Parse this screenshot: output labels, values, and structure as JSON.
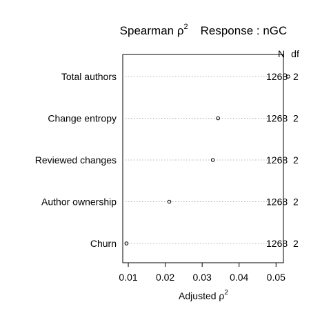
{
  "chart_data": {
    "type": "scatter",
    "title": "Spearman ρ² Response : nGC",
    "title_parts": {
      "main": "Spearman ρ",
      "sup": "2",
      "response": "Response : nGC"
    },
    "xlabel": "Adjusted ρ²",
    "xlabel_parts": {
      "main": "Adjusted ρ",
      "sup": "2"
    },
    "xlim": [
      0.0085,
      0.052
    ],
    "xticks": [
      0.01,
      0.02,
      0.03,
      0.04,
      0.05
    ],
    "xtick_labels": [
      "0.01",
      "0.02",
      "0.03",
      "0.04",
      "0.05"
    ],
    "grid": "dotted horizontal guide per row",
    "right_headers": [
      "N",
      "df"
    ],
    "rows": [
      {
        "label": "Total authors",
        "value": 0.0533,
        "n": "1268",
        "df": "2"
      },
      {
        "label": "Change entropy",
        "value": 0.0343,
        "n": "1268",
        "df": "2"
      },
      {
        "label": "Reviewed changes",
        "value": 0.0329,
        "n": "1268",
        "df": "2"
      },
      {
        "label": "Author ownership",
        "value": 0.0211,
        "n": "1268",
        "df": "2"
      },
      {
        "label": "Churn",
        "value": 0.0095,
        "n": "1268",
        "df": "2"
      }
    ]
  }
}
